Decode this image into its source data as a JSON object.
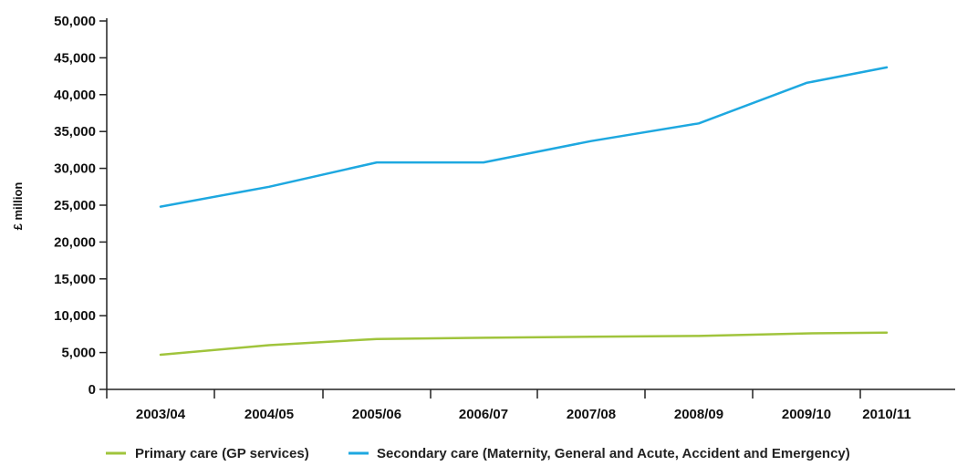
{
  "chart_data": {
    "type": "line",
    "title": "",
    "xlabel": "",
    "ylabel": "£ million",
    "categories": [
      "2003/04",
      "2004/05",
      "2005/06",
      "2006/07",
      "2007/08",
      "2008/09",
      "2009/10",
      "2010/11"
    ],
    "ylim": [
      0,
      50000
    ],
    "yticks": [
      "0",
      "5,000",
      "10,000",
      "15,000",
      "20,000",
      "25,000",
      "30,000",
      "35,000",
      "40,000",
      "45,000",
      "50,000"
    ],
    "ytick_values": [
      0,
      5000,
      10000,
      15000,
      20000,
      25000,
      30000,
      35000,
      40000,
      45000,
      50000
    ],
    "grid": false,
    "legend_position": "bottom",
    "series": [
      {
        "name": "Primary care (GP services)",
        "color": "#a0c43c",
        "values": [
          4700,
          6000,
          6850,
          7000,
          7150,
          7250,
          7600,
          7700
        ]
      },
      {
        "name": "Secondary care (Maternity, General and Acute, Accident and Emergency)",
        "color": "#1ea8e0",
        "values": [
          24800,
          27500,
          30800,
          30800,
          33700,
          36100,
          41600,
          43700
        ]
      }
    ]
  }
}
